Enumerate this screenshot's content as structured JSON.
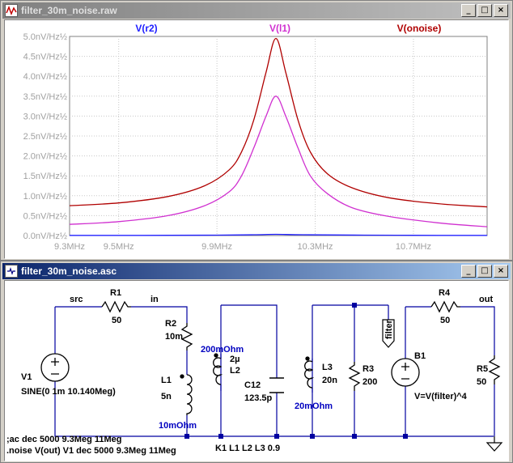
{
  "plot_window": {
    "title": "filter_30m_noise.raw",
    "buttons": {
      "minimize": "_",
      "maximize": "□",
      "close": "×"
    }
  },
  "schematic_window": {
    "title": "filter_30m_noise.asc",
    "buttons": {
      "minimize": "_",
      "maximize": "□",
      "close": "×"
    }
  },
  "colors": {
    "r2": "#2020ff",
    "l1": "#d030d0",
    "onoise": "#b00000",
    "axis_text": "#a0a0a0",
    "schematic_text": "#000000",
    "schematic_wire": "#0000a0",
    "annotation_blue": "#0000c0"
  },
  "chart_data": {
    "type": "line",
    "xlabel": "",
    "ylabel": "",
    "x_ticks": [
      "9.3MHz",
      "9.5MHz",
      "9.9MHz",
      "10.3MHz",
      "10.7MHz"
    ],
    "x_tick_values": [
      9.3,
      9.5,
      9.9,
      10.3,
      10.7
    ],
    "y_ticks": [
      "0.0nV/Hz½",
      "0.5nV/Hz½",
      "1.0nV/Hz½",
      "1.5nV/Hz½",
      "2.0nV/Hz½",
      "2.5nV/Hz½",
      "3.0nV/Hz½",
      "3.5nV/Hz½",
      "4.0nV/Hz½",
      "4.5nV/Hz½",
      "5.0nV/Hz½"
    ],
    "xlim": [
      9.3,
      11.0
    ],
    "ylim": [
      0,
      5.0
    ],
    "grid": true,
    "legend_position": "top",
    "series": [
      {
        "name": "V(r2)",
        "color": "#2020ff",
        "x": [
          9.3,
          9.6,
          9.9,
          10.05,
          10.14,
          10.25,
          10.5,
          10.8,
          11.0
        ],
        "y": [
          0.005,
          0.005,
          0.01,
          0.02,
          0.03,
          0.02,
          0.01,
          0.005,
          0.005
        ]
      },
      {
        "name": "V(l1)",
        "color": "#d030d0",
        "x": [
          9.3,
          9.5,
          9.7,
          9.85,
          9.95,
          10.0,
          10.05,
          10.1,
          10.14,
          10.18,
          10.23,
          10.28,
          10.35,
          10.45,
          10.6,
          10.8,
          11.0
        ],
        "y": [
          0.28,
          0.35,
          0.5,
          0.75,
          1.1,
          1.5,
          2.2,
          3.0,
          3.5,
          3.0,
          2.2,
          1.5,
          1.05,
          0.7,
          0.48,
          0.32,
          0.22
        ]
      },
      {
        "name": "V(onoise)",
        "color": "#b00000",
        "x": [
          9.3,
          9.5,
          9.7,
          9.85,
          9.95,
          10.0,
          10.05,
          10.1,
          10.14,
          10.18,
          10.23,
          10.28,
          10.35,
          10.45,
          10.6,
          10.8,
          11.0
        ],
        "y": [
          0.75,
          0.82,
          0.98,
          1.25,
          1.65,
          2.1,
          2.9,
          4.1,
          4.95,
          4.1,
          2.9,
          2.1,
          1.55,
          1.2,
          0.95,
          0.8,
          0.72
        ]
      }
    ]
  },
  "schematic": {
    "labels": {
      "src": "src",
      "in": "in",
      "out": "out",
      "r1": "R1",
      "r1_val": "50",
      "r2": "R2",
      "r2_val": "10m",
      "l1": "L1",
      "l1_val": "5n",
      "l1_esr": "10mOhm",
      "l2": "L2",
      "l2_val": "2µ",
      "l2_esr": "200mOhm",
      "c12": "C12",
      "c12_val": "123.5p",
      "l3": "L3",
      "l3_val": "20n",
      "l3_esr": "20mOhm",
      "r3": "R3",
      "r3_val": "200",
      "filter": "filter",
      "b1": "B1",
      "b1_val": "V=V(filter)^4",
      "r4": "R4",
      "r4_val": "50",
      "r5": "R5",
      "r5_val": "50",
      "v1": "V1",
      "v1_val": "SINE(0 1m 10.140Meg)",
      "k1": "K1 L1 L2 L3 0.9"
    },
    "directives": [
      ";ac dec 5000 9.3Meg 11Meg",
      ".noise V(out) V1 dec 5000 9.3Meg 11Meg"
    ]
  }
}
